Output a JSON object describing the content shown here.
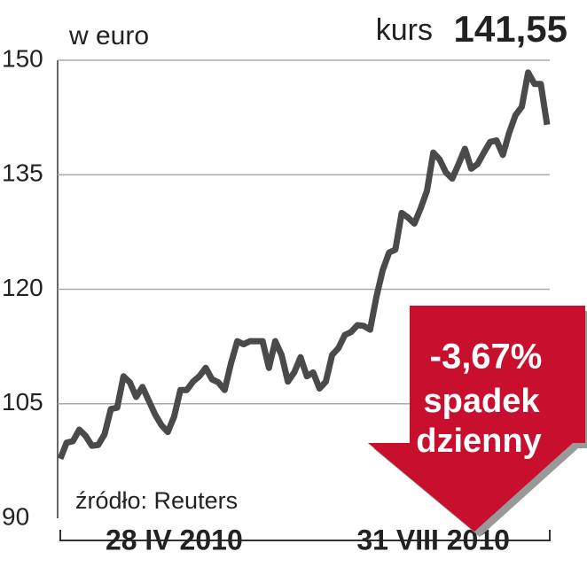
{
  "chart_data": {
    "type": "line",
    "subtitle": "w euro",
    "price_label": "kurs",
    "price_value": "141,55",
    "source": "źródło: Reuters",
    "annotation": {
      "change": "-3,67%",
      "line1": "spadek",
      "line2": "dzienny",
      "color": "#c8102e"
    },
    "categories": [
      null,
      null,
      null,
      null,
      null,
      null,
      null,
      null,
      null,
      null,
      null,
      null,
      null,
      null,
      null,
      null,
      null,
      null,
      "28 IV 2010",
      null,
      null,
      null,
      null,
      null,
      null,
      null,
      null,
      null,
      null,
      null,
      null,
      null,
      null,
      null,
      null,
      null,
      null,
      null,
      null,
      null,
      null,
      null,
      null,
      null,
      null,
      null,
      null,
      null,
      null,
      null,
      null,
      null,
      null,
      null,
      null,
      null,
      null,
      null,
      null,
      "31 VIII 2010",
      null,
      null,
      null,
      null,
      null,
      null,
      null,
      null,
      null,
      null,
      null,
      null,
      null,
      null,
      null,
      null,
      null,
      null
    ],
    "series": [
      {
        "color": "#4a4a4a",
        "values": [
          97.8,
          99.9,
          100.1,
          101.6,
          100.8,
          99.5,
          99.6,
          101.0,
          104.3,
          104.5,
          108.6,
          107.8,
          105.9,
          107.2,
          105.4,
          103.6,
          102.2,
          101.3,
          103.3,
          106.8,
          106.8,
          107.9,
          108.6,
          109.7,
          108.2,
          107.8,
          106.8,
          110.3,
          113.2,
          112.8,
          113.2,
          113.2,
          113.2,
          109.7,
          113.2,
          111.4,
          107.9,
          109.1,
          111.1,
          108.6,
          109.1,
          107.0,
          107.9,
          111.4,
          112.3,
          114.0,
          114.4,
          115.3,
          115.2,
          114.7,
          119.0,
          122.5,
          124.8,
          125.2,
          130.0,
          129.4,
          128.6,
          130.6,
          132.9,
          137.9,
          137.0,
          135.3,
          134.5,
          136.4,
          138.4,
          135.8,
          136.4,
          137.9,
          139.3,
          139.5,
          137.6,
          140.5,
          142.8,
          143.9,
          148.4,
          146.9,
          146.9,
          141.55
        ]
      }
    ],
    "ylim": [
      90,
      150
    ],
    "yticks": [
      90,
      105,
      120,
      135,
      150
    ],
    "grid": true
  }
}
